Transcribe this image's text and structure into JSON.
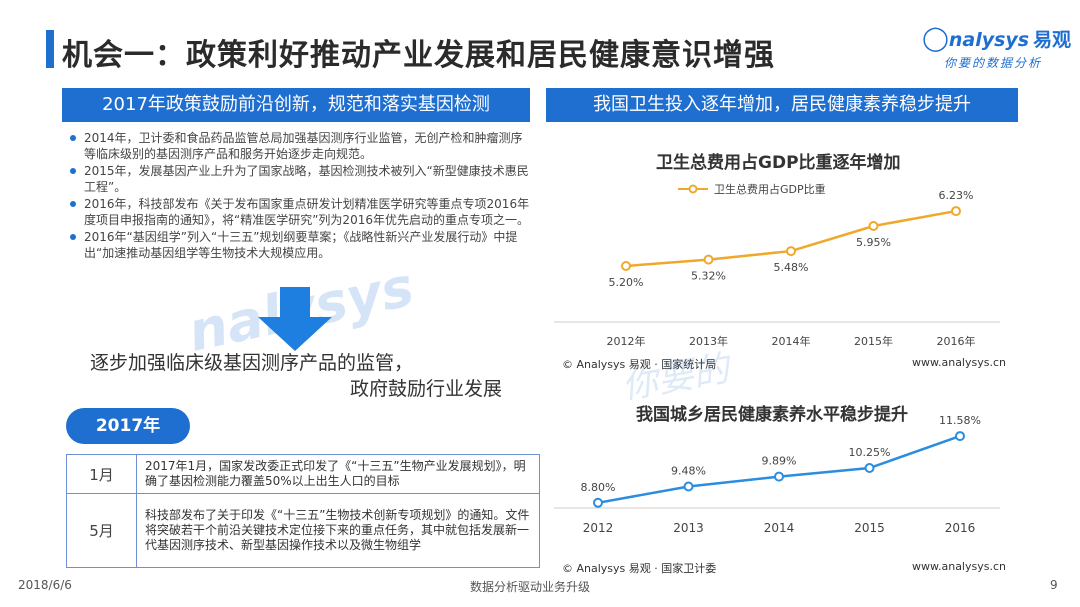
{
  "header": {
    "title": "机会一：政策利好推动产业发展和居民健康意识增强",
    "logo_brand": "nalysys",
    "logo_brand_cn": "易观",
    "logo_slogan": "你要的数据分析"
  },
  "left": {
    "section_title": "2017年政策鼓励前沿创新，规范和落实基因检测",
    "bullets": [
      "2014年，卫计委和食品药品监管总局加强基因测序行业监管，无创产检和肿瘤测序等临床级别的基因测序产品和服务开始逐步走向规范。",
      "2015年，发展基因产业上升为了国家战略，基因检测技术被列入“新型健康技术惠民工程”。",
      "2016年，科技部发布《关于发布国家重点研发计划精准医学研究等重点专项2016年度项目申报指南的通知》，将“精准医学研究”列为2016年优先启动的重点专项之一。",
      "2016年“基因组学”列入“十三五”规划纲要草案；《战略性新兴产业发展行动》中提出“加速推动基因组学等生物技术大规模应用。"
    ],
    "summary_line1": "逐步加强临床级基因测序产品的监管，",
    "summary_line2": "政府鼓励行业发展",
    "year_tab": "2017年",
    "events": [
      {
        "month": "1月",
        "text": "2017年1月，国家发改委正式印发了《“十三五”生物产业发展规划》，明确了基因检测能力覆盖50%以上出生人口的目标"
      },
      {
        "month": "5月",
        "text": "科技部发布了关于印发《“十三五”生物技术创新专项规划》的通知。文件将突破若干个前沿关键技术定位接下来的重点任务，其中就包括发展新一代基因测序技术、新型基因操作技术以及微生物组学"
      }
    ]
  },
  "right": {
    "section_title": "我国卫生投入逐年增加，居民健康素养稳步提升",
    "chart1_source": "© Analysys 易观 · 国家统计局",
    "chart1_url": "www.analysys.cn",
    "chart2_source": "© Analysys 易观 · 国家卫计委",
    "chart2_url": "www.analysys.cn"
  },
  "chart_data": [
    {
      "type": "line",
      "title": "卫生总费用占GDP比重逐年增加",
      "categories": [
        "2012年",
        "2013年",
        "2014年",
        "2015年",
        "2016年"
      ],
      "series": [
        {
          "name": "卫生总费用占GDP比重",
          "values": [
            5.2,
            5.32,
            5.48,
            5.95,
            6.23
          ],
          "labels": [
            "5.20%",
            "5.32%",
            "5.48%",
            "5.95%",
            "6.23%"
          ]
        }
      ],
      "ylim": [
        4.9,
        6.4
      ],
      "color": "#f0a82a",
      "legend": "top-left",
      "grid": false
    },
    {
      "type": "line",
      "title": "我国城乡居民健康素养水平稳步提升",
      "categories": [
        "2012",
        "2013",
        "2014",
        "2015",
        "2016"
      ],
      "series": [
        {
          "values": [
            8.8,
            9.48,
            9.89,
            10.25,
            11.58
          ],
          "labels": [
            "8.80%",
            "9.48%",
            "9.89%",
            "10.25%",
            "11.58%"
          ]
        }
      ],
      "ylim": [
        8.0,
        12.0
      ],
      "color": "#2a8de0",
      "legend": "none",
      "grid": false
    }
  ],
  "footer": {
    "date": "2018/6/6",
    "center": "数据分析驱动业务升级",
    "page": "9"
  }
}
